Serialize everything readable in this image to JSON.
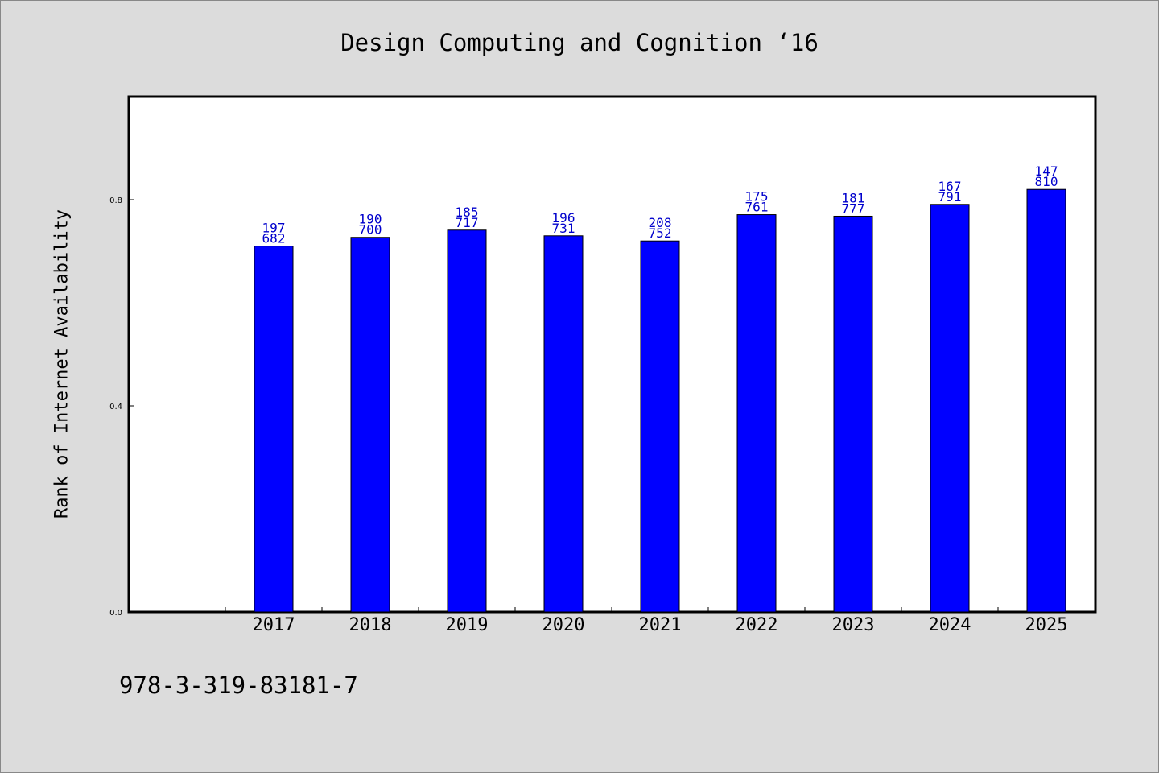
{
  "chart_data": {
    "type": "bar",
    "title": "Design Computing and Cognition  ‘16",
    "subtitle": "978-3-319-83181-7",
    "xlabel": "",
    "ylabel": "Rank of Internet Availability",
    "categories": [
      "2017",
      "2018",
      "2019",
      "2020",
      "2021",
      "2022",
      "2023",
      "2024",
      "2025"
    ],
    "series": [
      {
        "values": [
          0.71,
          0.727,
          0.741,
          0.73,
          0.72,
          0.771,
          0.768,
          0.791,
          0.82
        ],
        "color": "#0000ff"
      }
    ],
    "bar_labels": [
      [
        "197",
        "682"
      ],
      [
        "190",
        "700"
      ],
      [
        "185",
        "717"
      ],
      [
        "196",
        "731"
      ],
      [
        "208",
        "752"
      ],
      [
        "175",
        "761"
      ],
      [
        "181",
        "777"
      ],
      [
        "167",
        "791"
      ],
      [
        "147",
        "810"
      ]
    ],
    "yticks": [
      "0.0",
      "0.4",
      "0.8"
    ],
    "ylim": [
      0,
      1.0
    ],
    "grid": false,
    "legend": "none",
    "colors": {
      "bar": "#0000ff",
      "bar_label": "#0000cc",
      "background": "#dcdcdc",
      "plot_area": "#ffffff"
    }
  }
}
